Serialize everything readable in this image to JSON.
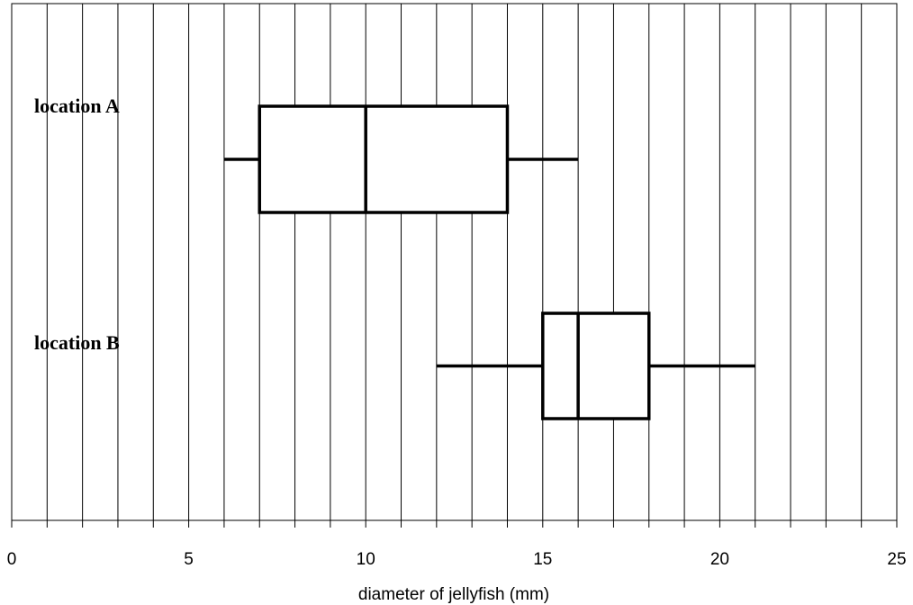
{
  "chart_data": {
    "type": "boxplot",
    "xlabel": "diameter of jellyfish (mm)",
    "xlim": [
      0,
      25
    ],
    "major_ticks": [
      "0",
      "5",
      "10",
      "15",
      "20",
      "25"
    ],
    "minor_tick_step": 1,
    "grid": true,
    "series": [
      {
        "name": "location A",
        "min": 6,
        "q1": 7,
        "median": 10,
        "q3": 14,
        "max": 16
      },
      {
        "name": "location B",
        "min": 12,
        "q1": 15,
        "median": 16,
        "q3": 18,
        "max": 21
      }
    ]
  }
}
